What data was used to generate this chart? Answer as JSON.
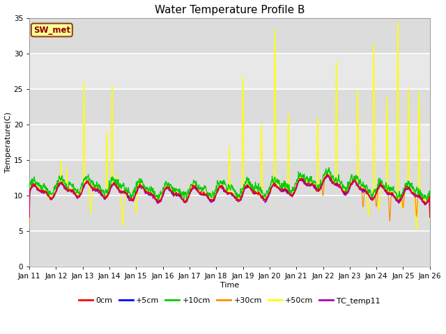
{
  "title": "Water Temperature Profile B",
  "xlabel": "Time",
  "ylabel": "Temperature(C)",
  "ylim": [
    0,
    35
  ],
  "yticks": [
    0,
    5,
    10,
    15,
    20,
    25,
    30,
    35
  ],
  "x_tick_labels": [
    "Jan 11",
    "Jan 12",
    "Jan 13",
    "Jan 14",
    "Jan 15",
    "Jan 16",
    "Jan 17",
    "Jan 18",
    "Jan 19",
    "Jan 20",
    "Jan 21",
    "Jan 22",
    "Jan 23",
    "Jan 24",
    "Jan 25",
    "Jan 26"
  ],
  "annotation_text": "SW_met",
  "annotation_box_color": "#FFFF99",
  "annotation_text_color": "#8B0000",
  "annotation_edge_color": "#8B4513",
  "legend_labels": [
    "0cm",
    "+5cm",
    "+10cm",
    "+30cm",
    "+50cm",
    "TC_temp11"
  ],
  "legend_colors": [
    "#FF0000",
    "#0000FF",
    "#00CC00",
    "#FF8C00",
    "#FFFF00",
    "#AA00AA"
  ],
  "line_widths": [
    1.0,
    1.0,
    1.0,
    1.0,
    1.0,
    1.0
  ],
  "bg_color": "#DCDCDC",
  "band_color_light": "#E8E8E8",
  "grid_color": "#FFFFFF",
  "title_fontsize": 11,
  "axis_fontsize": 8,
  "tick_fontsize": 7.5,
  "legend_fontsize": 8
}
